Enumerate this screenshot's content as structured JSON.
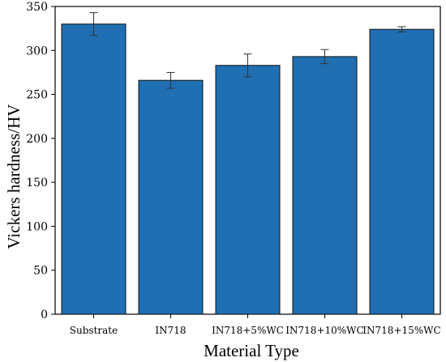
{
  "chart_data": {
    "type": "bar",
    "categories": [
      "Substrate",
      "IN718",
      "IN718+5%WC",
      "IN718+10%WC",
      "IN718+15%WC"
    ],
    "values": [
      330,
      266,
      283,
      293,
      324
    ],
    "errors": [
      13,
      9,
      13,
      8,
      3
    ],
    "xlabel": "Material Type",
    "ylabel": "Vickers hardness/HV",
    "ylim": [
      0,
      350
    ],
    "yticks": [
      0,
      50,
      100,
      150,
      200,
      250,
      300,
      350
    ],
    "ytick_labels": [
      "0",
      "50",
      "100",
      "150",
      "200",
      "250",
      "300",
      "350"
    ],
    "grid": false,
    "legend": "none",
    "colors": {
      "bar": "#1f6fb2",
      "bar_edge": "#111111",
      "axis": "#000000"
    }
  }
}
